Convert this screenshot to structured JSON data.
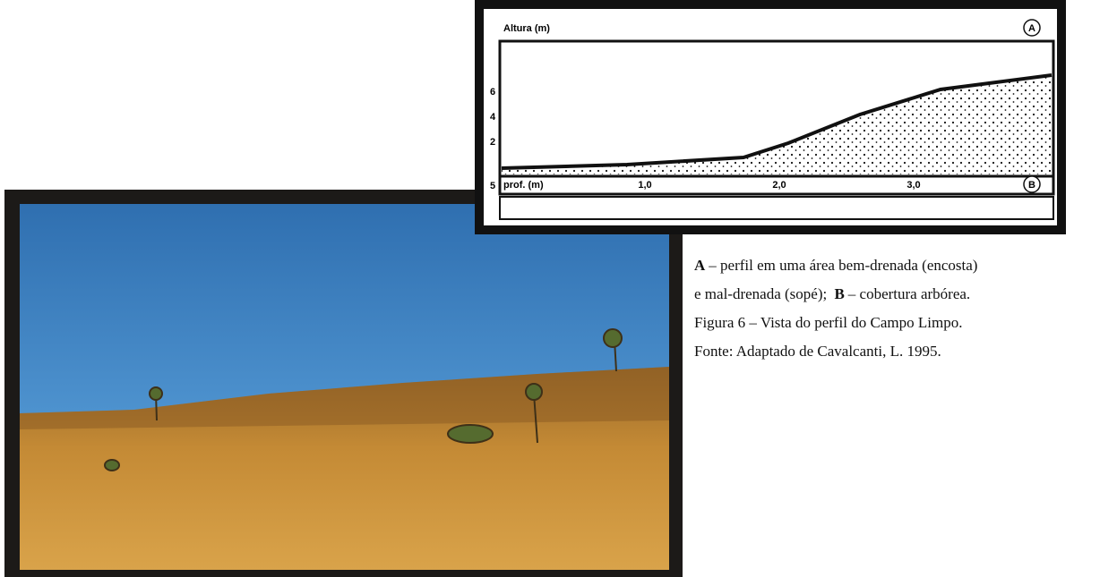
{
  "diagram": {
    "y_axis_label": "Altura (m)",
    "marker_top": "A",
    "y_ticks": [
      "6",
      "4",
      "2"
    ],
    "depth_tick": "5",
    "x_axis_label": "prof. (m)",
    "x_ticks": [
      "1,0",
      "2,0",
      "3,0"
    ],
    "marker_bottom": "B"
  },
  "caption": {
    "line1": {
      "key": "A",
      "text": "– perfil em uma área bem-drenada (encosta)"
    },
    "line2": {
      "text": "e mal-drenada (sopé);",
      "key": "B",
      "rest": "– cobertura arbórea."
    },
    "line3": "Figura 6 – Vista do perfil do Campo Limpo.",
    "line4": "Fonte: Adaptado de Cavalcanti, L. 1995."
  }
}
